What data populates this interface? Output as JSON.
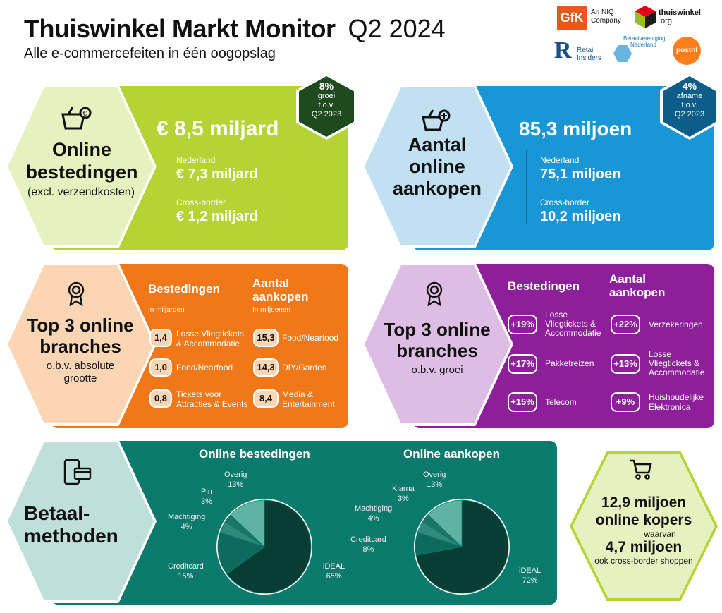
{
  "header": {
    "title": "Thuiswinkel Markt Monitor",
    "period": "Q2 2024",
    "subtitle": "Alle e-commercefeiten in één oogopslag"
  },
  "logos": {
    "gfk": "GfK",
    "gfk_caption_1": "An NIQ",
    "gfk_caption_2": "Company",
    "thuiswinkel_1": "thuiswinkel",
    "thuiswinkel_2": ".org",
    "retail_1": "Retail",
    "retail_2": "Insiders",
    "betaal_1": "Betaalvereniging",
    "betaal_2": "Nederland",
    "postnl": "postnl"
  },
  "spend": {
    "title_1": "Online",
    "title_2": "bestedingen",
    "note": "(excl. verzendkosten)",
    "total": "€ 8,5 miljard",
    "nl_label": "Nederland",
    "nl_value": "€ 7,3 miljard",
    "cb_label": "Cross-border",
    "cb_value": "€ 1,2 miljard",
    "badge_pct": "8%",
    "badge_1": "groei",
    "badge_2": "t.o.v.",
    "badge_3": "Q2 2023"
  },
  "purchases": {
    "title_1": "Aantal",
    "title_2": "online",
    "title_3": "aankopen",
    "total": "85,3 miljoen",
    "nl_label": "Nederland",
    "nl_value": "75,1 miljoen",
    "cb_label": "Cross-border",
    "cb_value": "10,2 miljoen",
    "badge_pct": "4%",
    "badge_1": "afname",
    "badge_2": "t.o.v.",
    "badge_3": "Q2 2023"
  },
  "top_abs": {
    "title_1": "Top 3 online",
    "title_2": "branches",
    "sub_1": "o.b.v. absolute",
    "sub_2": "grootte",
    "col1_head": "Bestedingen",
    "col1_unit": "In miljarden",
    "col2_head_1": "Aantal",
    "col2_head_2": "aankopen",
    "col2_unit": "In miljoenen",
    "col1": [
      {
        "value": "1,4",
        "label_1": "Losse Vliegtickets",
        "label_2": "& Accommodatie"
      },
      {
        "value": "1,0",
        "label_1": "Food/Nearfood",
        "label_2": ""
      },
      {
        "value": "0,8",
        "label_1": "Tickets voor",
        "label_2": "Attracties & Events"
      }
    ],
    "col2": [
      {
        "value": "15,3",
        "label_1": "Food/Nearfood",
        "label_2": ""
      },
      {
        "value": "14,3",
        "label_1": "DIY/Garden",
        "label_2": ""
      },
      {
        "value": "8,4",
        "label_1": "Media &",
        "label_2": "Entertainment"
      }
    ]
  },
  "top_growth": {
    "title_1": "Top 3 online",
    "title_2": "branches",
    "sub": "o.b.v. groei",
    "col1_head": "Bestedingen",
    "col2_head_1": "Aantal",
    "col2_head_2": "aankopen",
    "col1": [
      {
        "value": "+19%",
        "label_1": "Losse",
        "label_2": "Vliegtickets &",
        "label_3": "Accommodatie"
      },
      {
        "value": "+17%",
        "label_1": "Pakketreizen",
        "label_2": "",
        "label_3": ""
      },
      {
        "value": "+15%",
        "label_1": "Telecom",
        "label_2": "",
        "label_3": ""
      }
    ],
    "col2": [
      {
        "value": "+22%",
        "label_1": "Verzekeringen",
        "label_2": "",
        "label_3": ""
      },
      {
        "value": "+13%",
        "label_1": "Losse",
        "label_2": "Vliegtickets &",
        "label_3": "Accommodatie"
      },
      {
        "value": "+9%",
        "label_1": "Huishoudelijke",
        "label_2": "Elektronica",
        "label_3": ""
      }
    ]
  },
  "payment": {
    "title_1": "Betaal-",
    "title_2": "methoden"
  },
  "buyers": {
    "line_1": "12,9 miljoen",
    "line_2": "online kopers",
    "line_3": "waarvan",
    "line_4": "4,7 miljoen",
    "line_5": "ook cross-border shoppen"
  },
  "colors": {
    "green": "#b5d334",
    "blue": "#1996d6",
    "orange": "#f07818",
    "purple": "#8d1f9a",
    "teal": "#0a7a6c",
    "dark_green": "#1e4a1d"
  },
  "chart_data": [
    {
      "type": "pie",
      "title": "Online bestedingen",
      "categories": [
        "iDEAL",
        "Creditcard",
        "Machtiging",
        "Pin",
        "Overig"
      ],
      "values": [
        65,
        15,
        4,
        3,
        13
      ],
      "labels": [
        "65%",
        "15%",
        "4%",
        "3%",
        "13%"
      ],
      "colors": [
        "#083d35",
        "#0e6a5c",
        "#2f8a7b",
        "#1b7466",
        "#5fb3a4"
      ]
    },
    {
      "type": "pie",
      "title": "Online aankopen",
      "categories": [
        "iDEAL",
        "Creditcard",
        "Machtiging",
        "Klarna",
        "Overig"
      ],
      "values": [
        72,
        8,
        4,
        3,
        13
      ],
      "labels": [
        "72%",
        "8%",
        "4%",
        "3%",
        "13%"
      ],
      "colors": [
        "#083d35",
        "#0e6a5c",
        "#2f8a7b",
        "#1b7466",
        "#5fb3a4"
      ]
    }
  ]
}
